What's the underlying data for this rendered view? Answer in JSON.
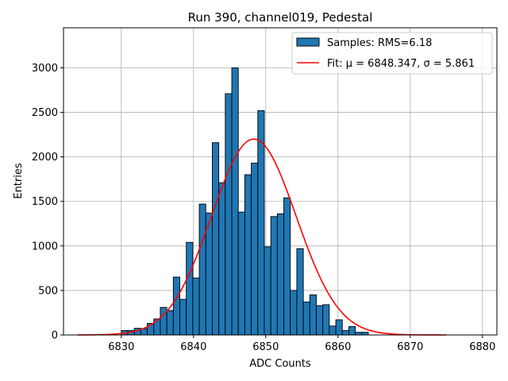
{
  "chart_data": {
    "type": "bar",
    "title": "Run 390, channel019, Pedestal",
    "xlabel": "ADC Counts",
    "ylabel": "Entries",
    "xlim": [
      6822,
      6882
    ],
    "ylim": [
      0,
      3450
    ],
    "xticks": [
      6830,
      6840,
      6850,
      6860,
      6870,
      6880
    ],
    "yticks": [
      0,
      500,
      1000,
      1500,
      2000,
      2500,
      3000
    ],
    "grid": true,
    "legend_position": "top-right",
    "bin_width": 0.9,
    "histogram": {
      "name": "Samples: RMS=6.18",
      "color": "#1f77b4",
      "bins": [
        {
          "x": 6830.0,
          "count": 50
        },
        {
          "x": 6830.9,
          "count": 50
        },
        {
          "x": 6831.8,
          "count": 75
        },
        {
          "x": 6832.7,
          "count": 70
        },
        {
          "x": 6833.6,
          "count": 130
        },
        {
          "x": 6834.5,
          "count": 180
        },
        {
          "x": 6835.4,
          "count": 310
        },
        {
          "x": 6836.3,
          "count": 275
        },
        {
          "x": 6837.2,
          "count": 650
        },
        {
          "x": 6838.1,
          "count": 400
        },
        {
          "x": 6839.0,
          "count": 1040
        },
        {
          "x": 6839.9,
          "count": 640
        },
        {
          "x": 6840.8,
          "count": 1470
        },
        {
          "x": 6841.7,
          "count": 1370
        },
        {
          "x": 6842.6,
          "count": 2160
        },
        {
          "x": 6843.5,
          "count": 1710
        },
        {
          "x": 6844.4,
          "count": 2710
        },
        {
          "x": 6845.3,
          "count": 3000
        },
        {
          "x": 6846.2,
          "count": 1380
        },
        {
          "x": 6847.1,
          "count": 1800
        },
        {
          "x": 6848.0,
          "count": 1930
        },
        {
          "x": 6848.9,
          "count": 2520
        },
        {
          "x": 6849.8,
          "count": 990
        },
        {
          "x": 6850.7,
          "count": 1330
        },
        {
          "x": 6851.6,
          "count": 1360
        },
        {
          "x": 6852.5,
          "count": 1540
        },
        {
          "x": 6853.4,
          "count": 500
        },
        {
          "x": 6854.3,
          "count": 970
        },
        {
          "x": 6855.2,
          "count": 370
        },
        {
          "x": 6856.1,
          "count": 450
        },
        {
          "x": 6857.0,
          "count": 330
        },
        {
          "x": 6857.9,
          "count": 340
        },
        {
          "x": 6858.8,
          "count": 100
        },
        {
          "x": 6859.7,
          "count": 170
        },
        {
          "x": 6860.6,
          "count": 50
        },
        {
          "x": 6861.5,
          "count": 95
        },
        {
          "x": 6862.4,
          "count": 30
        },
        {
          "x": 6863.3,
          "count": 30
        }
      ]
    },
    "fit": {
      "name": "Fit: μ = 6848.347, σ = 5.861",
      "color": "#ff0000",
      "mu": 6848.347,
      "sigma": 5.861,
      "amplitude": 2200,
      "x_range": [
        6824,
        6875
      ]
    }
  }
}
